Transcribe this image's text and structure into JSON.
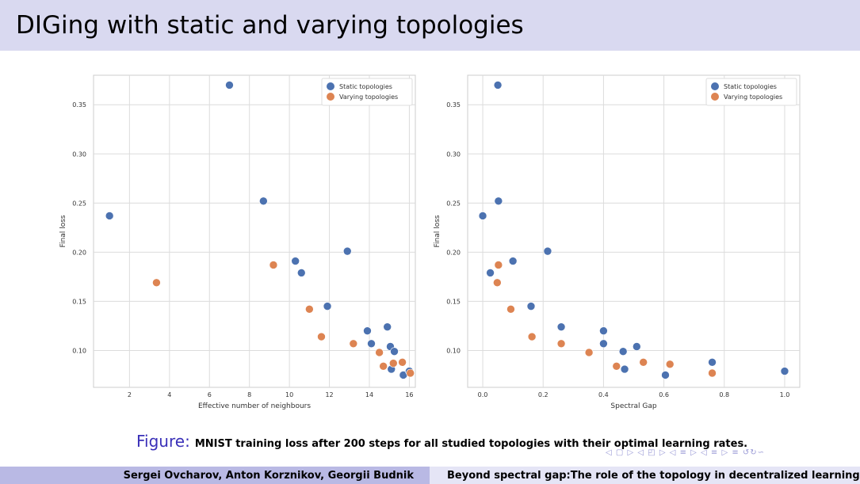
{
  "slide": {
    "title": "DIGing with static and varying topologies",
    "caption_label": "Figure:",
    "caption_text": "MNIST training loss after 200 steps for all studied topologies with their optimal learning rates.",
    "nav_symbols": "◁ ▢ ▷ ◁ ◰ ▷ ◁ ≡ ▷ ◁ ≡ ▷   ≡   ↺↻∽",
    "footer_left": "Sergei Ovcharov, Anton Korznikov, Georgii Budnik",
    "footer_right": "Beyond spectral gap:The role of the topology in decentralized learning"
  },
  "colors": {
    "static": "#4c72b0",
    "varying": "#dd8452",
    "title_bar": "#d9d9f0",
    "footer_left": "#b9b9e4",
    "footer_right": "#e5e5f6",
    "figure_label": "#3a30b8"
  },
  "chart_data": [
    {
      "type": "scatter",
      "xlabel": "Effective number of neighbours",
      "ylabel": "Final loss",
      "xlim": [
        0.2,
        16.3
      ],
      "ylim": [
        0.0625,
        0.38
      ],
      "xticks": [
        2,
        4,
        6,
        8,
        10,
        12,
        14,
        16
      ],
      "xtick_labels": [
        "2",
        "4",
        "6",
        "8",
        "10",
        "12",
        "14",
        "16"
      ],
      "yticks": [
        0.1,
        0.15,
        0.2,
        0.25,
        0.3,
        0.35
      ],
      "ytick_labels": [
        "0.10",
        "0.15",
        "0.20",
        "0.25",
        "0.30",
        "0.35"
      ],
      "grid": true,
      "legend_position": "top-right",
      "series": [
        {
          "name": "Static topologies",
          "x": [
            1.0,
            7.0,
            8.7,
            10.3,
            10.6,
            11.9,
            12.9,
            13.9,
            14.1,
            14.9,
            15.05,
            15.1,
            15.25,
            15.7,
            16.0
          ],
          "y": [
            0.237,
            0.37,
            0.252,
            0.191,
            0.179,
            0.145,
            0.201,
            0.12,
            0.107,
            0.124,
            0.104,
            0.081,
            0.099,
            0.075,
            0.079
          ]
        },
        {
          "name": "Varying topologies",
          "x": [
            3.35,
            9.2,
            11.0,
            11.6,
            13.2,
            14.5,
            14.7,
            15.2,
            15.65,
            16.05
          ],
          "y": [
            0.169,
            0.187,
            0.142,
            0.114,
            0.107,
            0.098,
            0.084,
            0.087,
            0.088,
            0.077
          ]
        }
      ]
    },
    {
      "type": "scatter",
      "xlabel": "Spectral Gap",
      "ylabel": "Final loss",
      "xlim": [
        -0.05,
        1.05
      ],
      "ylim": [
        0.0625,
        0.38
      ],
      "xticks": [
        0.0,
        0.2,
        0.4,
        0.6,
        0.8,
        1.0
      ],
      "xtick_labels": [
        "0.0",
        "0.2",
        "0.4",
        "0.6",
        "0.8",
        "1.0"
      ],
      "yticks": [
        0.1,
        0.15,
        0.2,
        0.25,
        0.3,
        0.35
      ],
      "ytick_labels": [
        "0.10",
        "0.15",
        "0.20",
        "0.25",
        "0.30",
        "0.35"
      ],
      "grid": true,
      "legend_position": "top-right",
      "series": [
        {
          "name": "Static topologies",
          "x": [
            0.0,
            0.05,
            0.052,
            0.025,
            0.1,
            0.215,
            0.16,
            0.26,
            0.4,
            0.4,
            0.465,
            0.47,
            0.51,
            0.605,
            0.76,
            1.0
          ],
          "y": [
            0.237,
            0.37,
            0.252,
            0.179,
            0.191,
            0.201,
            0.145,
            0.124,
            0.12,
            0.107,
            0.099,
            0.081,
            0.104,
            0.075,
            0.088,
            0.079
          ]
        },
        {
          "name": "Varying topologies",
          "x": [
            0.052,
            0.048,
            0.093,
            0.163,
            0.26,
            0.352,
            0.443,
            0.532,
            0.62,
            0.76
          ],
          "y": [
            0.187,
            0.169,
            0.142,
            0.114,
            0.107,
            0.098,
            0.084,
            0.088,
            0.086,
            0.077
          ]
        }
      ]
    }
  ]
}
